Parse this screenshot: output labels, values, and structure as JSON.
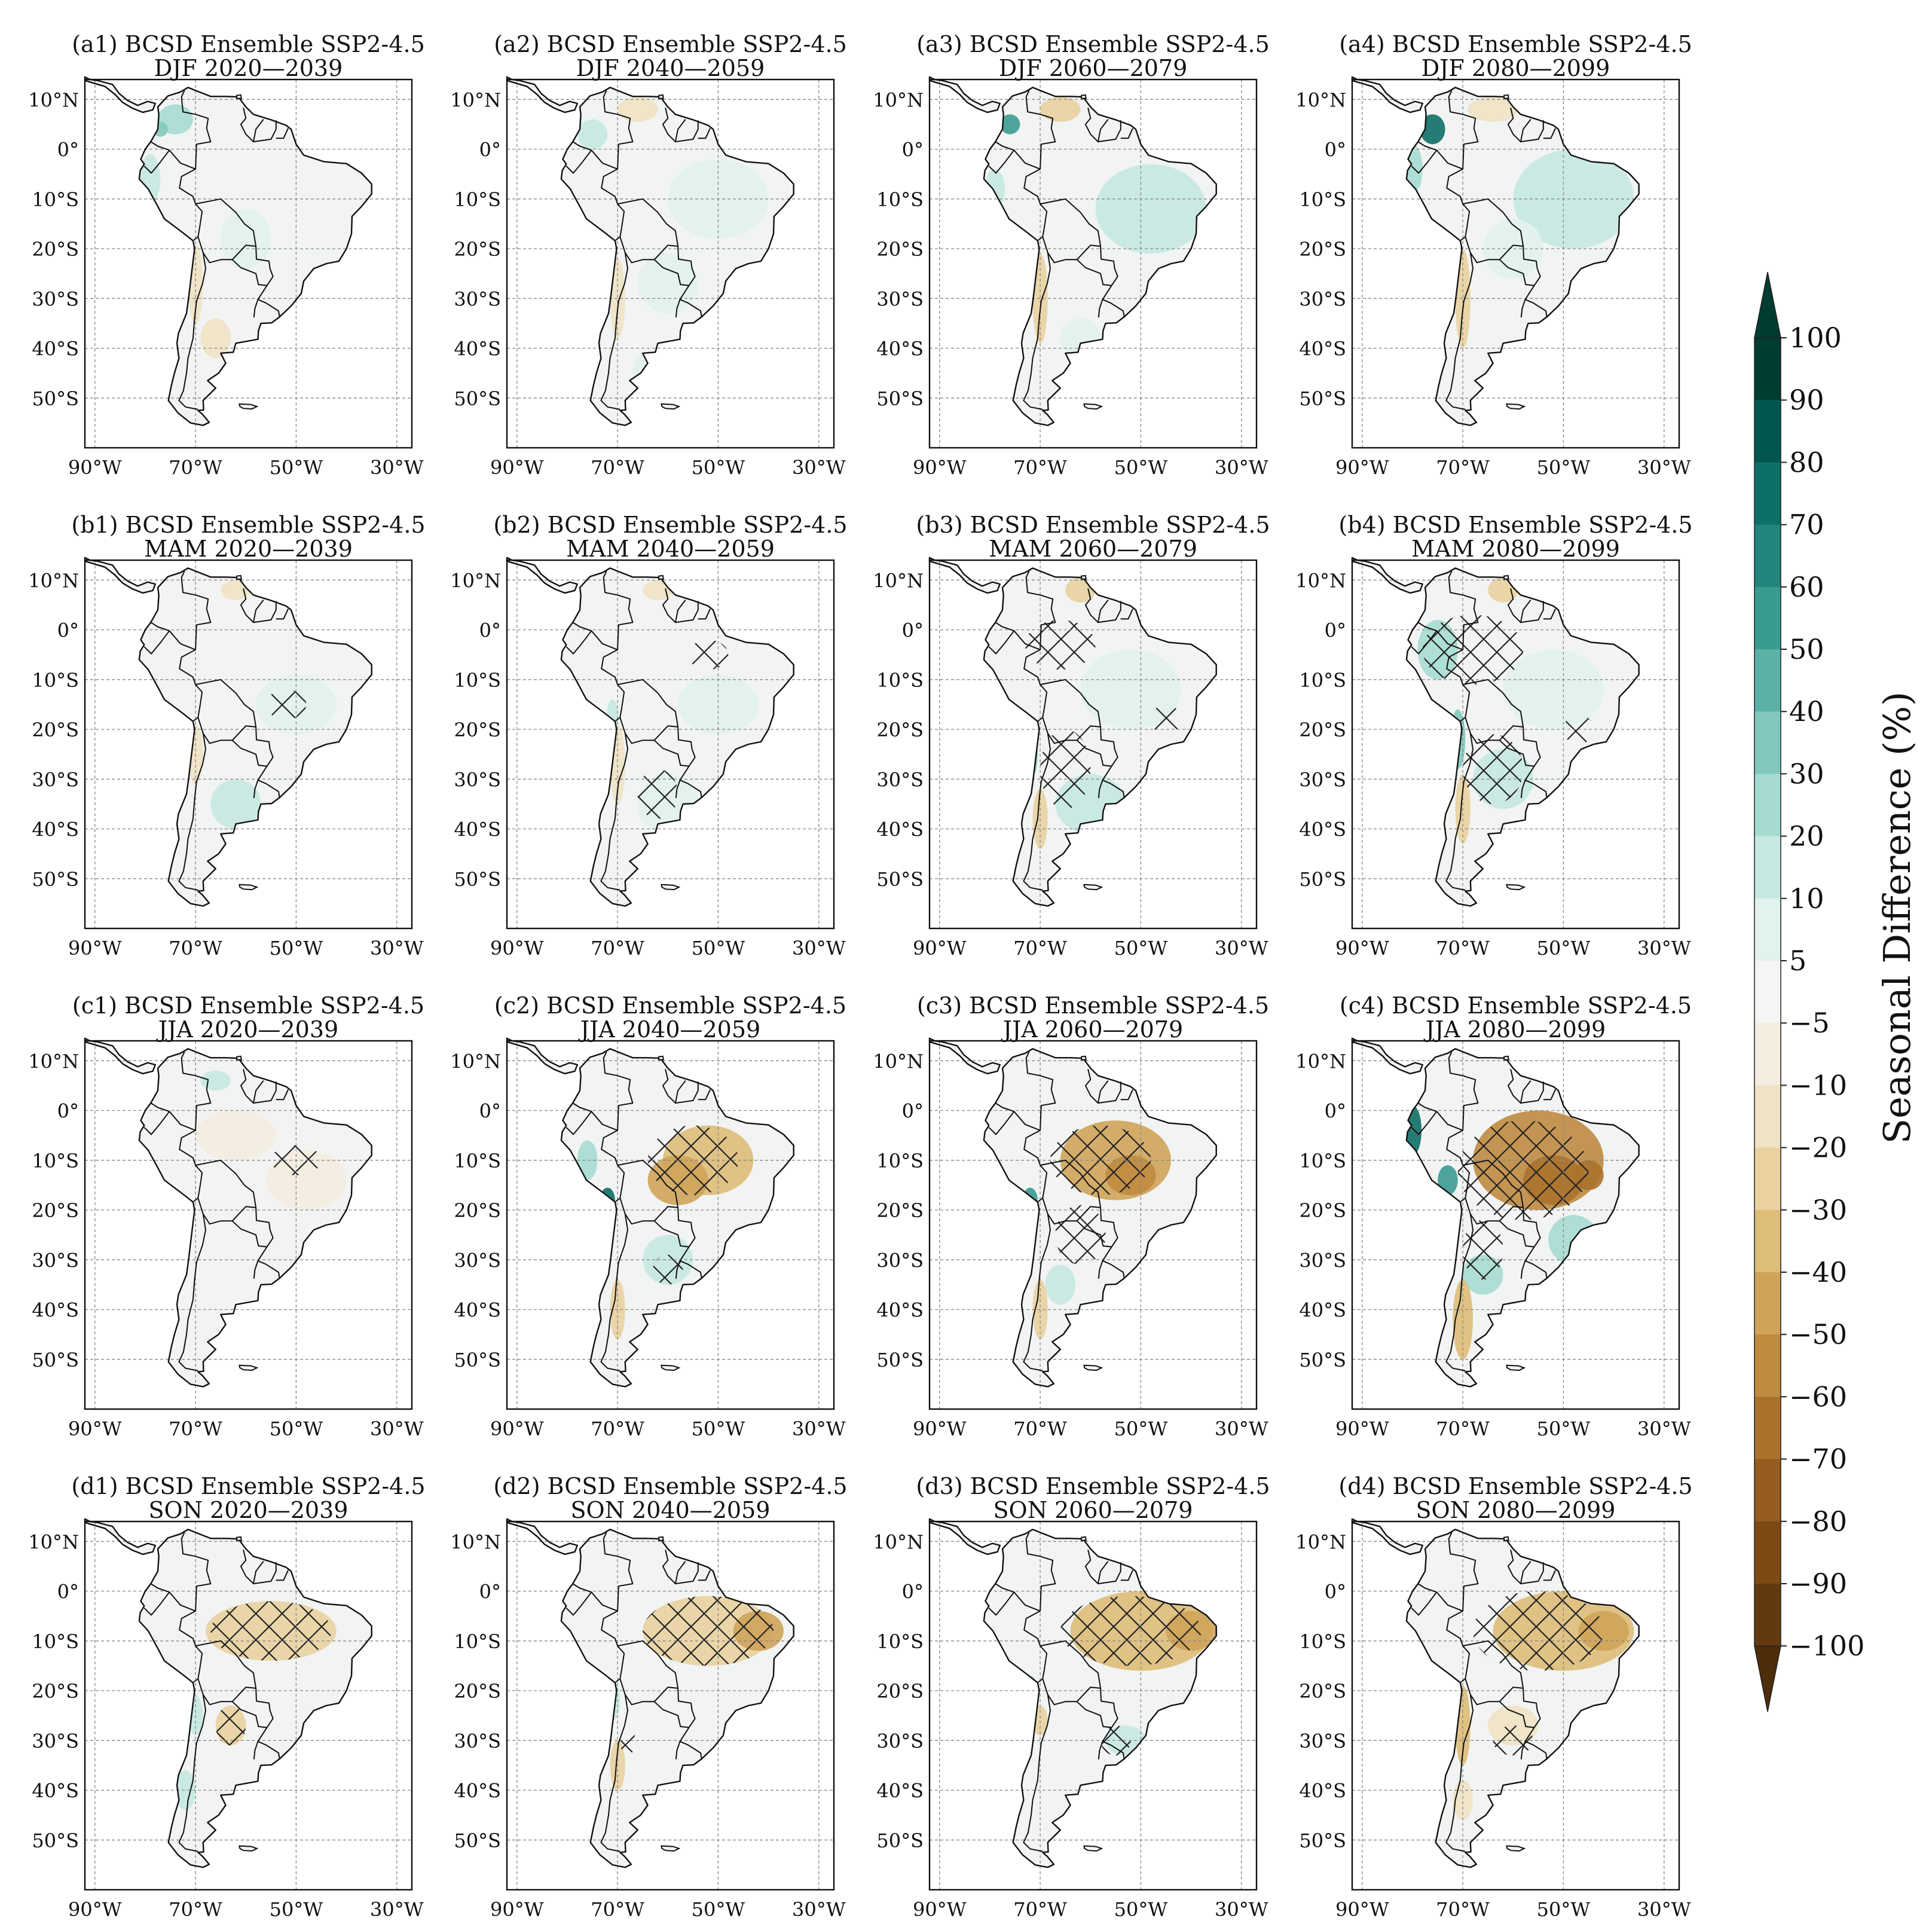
{
  "figure": {
    "model": "BCSD Ensemble SSP2-4.5",
    "rows": [
      {
        "letter": "a",
        "season": "DJF"
      },
      {
        "letter": "b",
        "season": "MAM"
      },
      {
        "letter": "c",
        "season": "JJA"
      },
      {
        "letter": "d",
        "season": "SON"
      }
    ],
    "periods": [
      "2020—2039",
      "2040—2059",
      "2060—2079",
      "2080—2099"
    ],
    "lat_ticks": [
      "10°N",
      "0°",
      "10°S",
      "20°S",
      "30°S",
      "40°S",
      "50°S"
    ],
    "lon_ticks": [
      "90°W",
      "70°W",
      "50°W",
      "30°W"
    ],
    "lat_values": [
      10,
      0,
      -10,
      -20,
      -30,
      -40,
      -50
    ],
    "lon_values": [
      -90,
      -70,
      -50,
      -30
    ],
    "extent": {
      "lon": [
        -92,
        -27
      ],
      "lat": [
        -60,
        14
      ]
    }
  },
  "colorbar": {
    "label": "Seasonal Difference (%)",
    "ticks": [
      "100",
      "90",
      "80",
      "70",
      "60",
      "50",
      "40",
      "30",
      "20",
      "10",
      "5",
      "−5",
      "−10",
      "−20",
      "−30",
      "−40",
      "−50",
      "−60",
      "−70",
      "−80",
      "−90",
      "−100"
    ],
    "colors": [
      "#003c30",
      "#01574f",
      "#0e6f67",
      "#23847b",
      "#3a9b91",
      "#5bb1a6",
      "#82c9bd",
      "#a6dbd1",
      "#c6e8e1",
      "#e2f2ee",
      "#f5f5f3",
      "#f4ede0",
      "#f0e2c4",
      "#e9d2a0",
      "#ddbd78",
      "#cfa45a",
      "#bf8b40",
      "#aa722d",
      "#955d1e",
      "#7d4a14",
      "#633a10",
      "#4e2d0a"
    ],
    "over_color": "#003c30",
    "under_color": "#4e2d0a"
  },
  "map_style": {
    "land": "#f1f4f2",
    "coast": "#111111",
    "grid": "#888888"
  }
}
